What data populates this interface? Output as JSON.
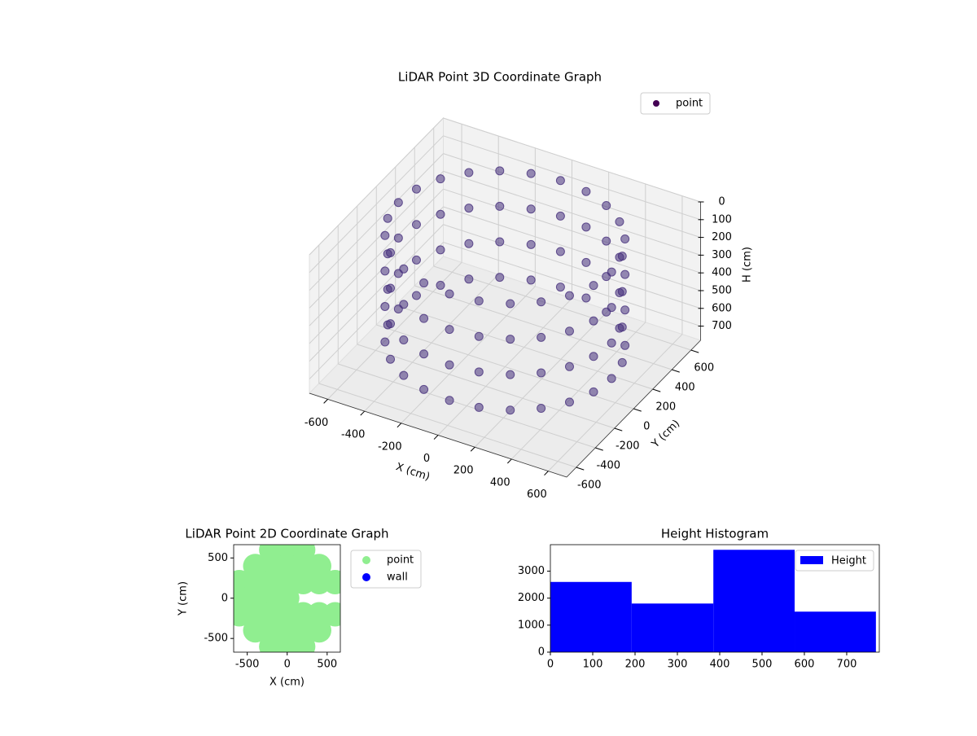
{
  "chart_data": [
    {
      "type": "scatter3d",
      "title": "LiDAR Point 3D Coordinate Graph",
      "xlabel": "X (cm)",
      "ylabel": "Y (cm)",
      "zlabel": "H (cm)",
      "xlim": [
        -700,
        700
      ],
      "ylim": [
        -700,
        700
      ],
      "zlim": [
        0,
        780
      ],
      "z_inverted": true,
      "xticks": [
        -600,
        -400,
        -200,
        0,
        200,
        400,
        600
      ],
      "yticks": [
        -600,
        -400,
        -200,
        0,
        200,
        400,
        600
      ],
      "zticks": [
        0,
        100,
        200,
        300,
        400,
        500,
        600,
        700
      ],
      "legend": "upper right",
      "grid": true,
      "series": [
        {
          "name": "point",
          "color": "#46307c",
          "legend_color": "#440154",
          "x": [
            580,
            560,
            502,
            410,
            290,
            150,
            0,
            -150,
            -290,
            -410,
            -502,
            -560,
            -580,
            -560,
            -502,
            -410,
            -290,
            -150,
            0,
            150,
            290,
            410,
            502,
            560,
            580,
            560,
            502,
            410,
            290,
            150,
            0,
            -150,
            -290,
            -410,
            -502,
            -560,
            -580,
            -560,
            -502,
            -410,
            -290,
            -150,
            0,
            150,
            290,
            410,
            502,
            560,
            580,
            560,
            502,
            410,
            290,
            150,
            0,
            -150,
            -290,
            -410,
            -502,
            -560,
            -580,
            -560,
            -502,
            -410,
            -290,
            -150,
            0,
            150,
            290,
            410,
            502,
            560,
            580,
            560,
            502,
            410,
            290,
            150,
            0,
            -150,
            -290,
            -410,
            -502,
            -560,
            -580,
            -560,
            -502,
            -410,
            -290,
            -150,
            0,
            150,
            290,
            410,
            502,
            560
          ],
          "y": [
            0,
            150,
            290,
            410,
            502,
            560,
            580,
            560,
            502,
            410,
            290,
            150,
            0,
            -150,
            -290,
            -410,
            -502,
            -560,
            -580,
            -560,
            -502,
            -410,
            -290,
            -150,
            0,
            150,
            290,
            410,
            502,
            560,
            580,
            560,
            502,
            410,
            290,
            150,
            0,
            -150,
            -290,
            -410,
            -502,
            -560,
            -580,
            -560,
            -502,
            -410,
            -290,
            -150,
            0,
            150,
            290,
            410,
            502,
            560,
            580,
            560,
            502,
            410,
            290,
            150,
            0,
            -150,
            -290,
            -410,
            -502,
            -560,
            -580,
            -560,
            -502,
            -410,
            -290,
            -150,
            0,
            150,
            290,
            410,
            502,
            560,
            580,
            560,
            502,
            410,
            290,
            150,
            0,
            -150,
            -290,
            -410,
            -502,
            -560,
            -580,
            -560,
            -502,
            -410,
            -290,
            -150
          ],
          "z": [
            50,
            50,
            50,
            50,
            50,
            50,
            50,
            50,
            50,
            50,
            50,
            50,
            50,
            50,
            50,
            50,
            50,
            50,
            50,
            50,
            50,
            50,
            50,
            50,
            250,
            250,
            250,
            250,
            250,
            250,
            250,
            250,
            250,
            250,
            250,
            250,
            250,
            250,
            250,
            250,
            250,
            250,
            250,
            250,
            250,
            250,
            250,
            250,
            450,
            450,
            450,
            450,
            450,
            450,
            450,
            450,
            450,
            450,
            450,
            450,
            450,
            450,
            450,
            450,
            450,
            450,
            450,
            450,
            450,
            450,
            450,
            450,
            650,
            650,
            650,
            650,
            650,
            650,
            650,
            650,
            650,
            650,
            650,
            650,
            650,
            650,
            650,
            650,
            650,
            650,
            650,
            650,
            650,
            650,
            650,
            650
          ]
        }
      ]
    },
    {
      "type": "scatter",
      "title": "LiDAR Point 2D Coordinate Graph",
      "xlabel": "X (cm)",
      "ylabel": "Y (cm)",
      "xlim": [
        -670,
        665
      ],
      "ylim": [
        -670,
        665
      ],
      "xticks": [
        -500,
        0,
        500
      ],
      "yticks": [
        -500,
        0,
        500
      ],
      "legend": "outside right",
      "series": [
        {
          "name": "point",
          "color": "#90ee90",
          "x": [
            -200,
            0,
            200,
            -400,
            -200,
            0,
            200,
            400,
            -600,
            -400,
            -200,
            0,
            200,
            400,
            600,
            -600,
            -400,
            -200,
            0,
            -600,
            -400,
            -200,
            0,
            200,
            400,
            600,
            -400,
            -200,
            0,
            200,
            400,
            -200,
            0,
            200
          ],
          "y": [
            600,
            600,
            600,
            400,
            400,
            400,
            400,
            400,
            200,
            200,
            200,
            200,
            200,
            200,
            200,
            0,
            0,
            0,
            0,
            -200,
            -200,
            -200,
            -200,
            -200,
            -200,
            -200,
            -400,
            -400,
            -400,
            -400,
            -400,
            -600,
            -600,
            -600
          ]
        },
        {
          "name": "wall",
          "color": "#0000ff",
          "x": [],
          "y": []
        }
      ]
    },
    {
      "type": "histogram",
      "title": "Height Histogram",
      "name": "Height",
      "color": "#0000ff",
      "bins": [
        0,
        192,
        385,
        577,
        769
      ],
      "counts": [
        2600,
        1800,
        3790,
        1500
      ],
      "xlim": [
        0,
        777
      ],
      "ylim": [
        0,
        3980
      ],
      "xticks": [
        0,
        100,
        200,
        300,
        400,
        500,
        600,
        700
      ],
      "yticks": [
        0,
        1000,
        2000,
        3000
      ],
      "legend": "upper right"
    }
  ]
}
